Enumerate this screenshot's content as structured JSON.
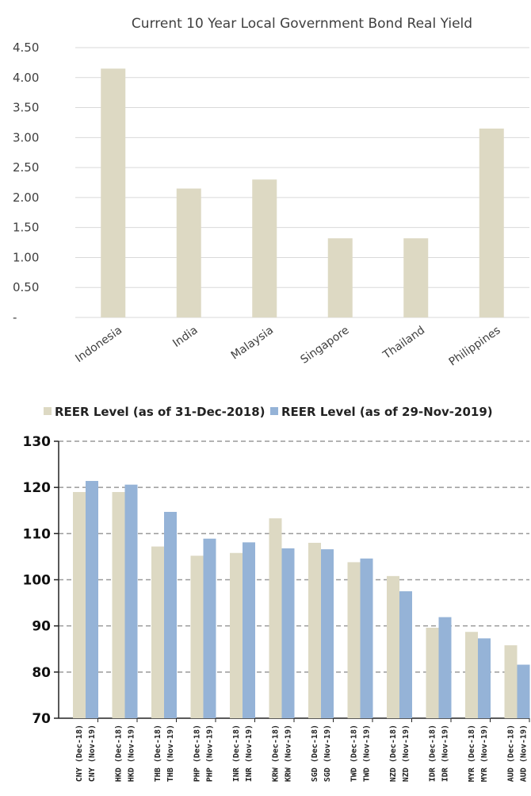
{
  "chart_data": [
    {
      "type": "bar",
      "title": "Current 10 Year Local Government Bond Real Yield",
      "xlabel": "",
      "ylabel": "",
      "categories": [
        "Indonesia",
        "India",
        "Malaysia",
        "Singapore",
        "Thailand",
        "Philippines"
      ],
      "values": [
        4.15,
        2.15,
        2.3,
        1.32,
        1.32,
        3.15
      ],
      "ylim": [
        0,
        4.5
      ],
      "yticks": [
        "-",
        "0.50",
        "1.00",
        "1.50",
        "2.00",
        "2.50",
        "3.00",
        "3.50",
        "4.00",
        "4.50"
      ],
      "grid": true,
      "colors": {
        "bar": "#ddd9c3",
        "grid": "#d9d9d9"
      }
    },
    {
      "type": "bar",
      "title": "",
      "xlabel": "",
      "ylabel": "",
      "legend_position": "top",
      "ylim": [
        70,
        130
      ],
      "yticks": [
        "70",
        "80",
        "90",
        "100",
        "110",
        "120",
        "130"
      ],
      "grid": true,
      "groups": [
        {
          "labels": [
            "CNY (Dec-18)",
            "CNY (Nov-19)"
          ]
        },
        {
          "labels": [
            "HKD (Dec-18)",
            "HKD (Nov-19)"
          ]
        },
        {
          "labels": [
            "THB (Dec-18)",
            "THB (Nov-19)"
          ]
        },
        {
          "labels": [
            "PHP (Dec-18)",
            "PHP (Nov-19)"
          ]
        },
        {
          "labels": [
            "INR (Dec-18)",
            "INR (Nov-19)"
          ]
        },
        {
          "labels": [
            "KRW (Dec-18)",
            "KRW (Nov-19)"
          ]
        },
        {
          "labels": [
            "SGD (Dec-18)",
            "SGD (Nov-19)"
          ]
        },
        {
          "labels": [
            "TWD (Dec-18)",
            "TWD (Nov-19)"
          ]
        },
        {
          "labels": [
            "NZD (Dec-18)",
            "NZD (Nov-19)"
          ]
        },
        {
          "labels": [
            "IDR (Dec-18)",
            "IDR (Nov-19)"
          ]
        },
        {
          "labels": [
            "MYR (Dec-18)",
            "MYR (Nov-19)"
          ]
        },
        {
          "labels": [
            "AUD (Dec-18)",
            "AUD (Nov-19)"
          ]
        }
      ],
      "series": [
        {
          "name": "REER Level (as of 31-Dec-2018)",
          "color": "#ddd9c3",
          "values": [
            119,
            119,
            107.2,
            105.2,
            105.8,
            113.3,
            108,
            103.8,
            100.8,
            89.6,
            88.7,
            85.8
          ]
        },
        {
          "name": "REER Level (as of 29-Nov-2019)",
          "color": "#95b3d7",
          "values": [
            121.4,
            120.6,
            114.7,
            108.9,
            108.1,
            106.8,
            106.6,
            104.6,
            97.5,
            91.9,
            87.3,
            81.6
          ]
        }
      ]
    }
  ]
}
